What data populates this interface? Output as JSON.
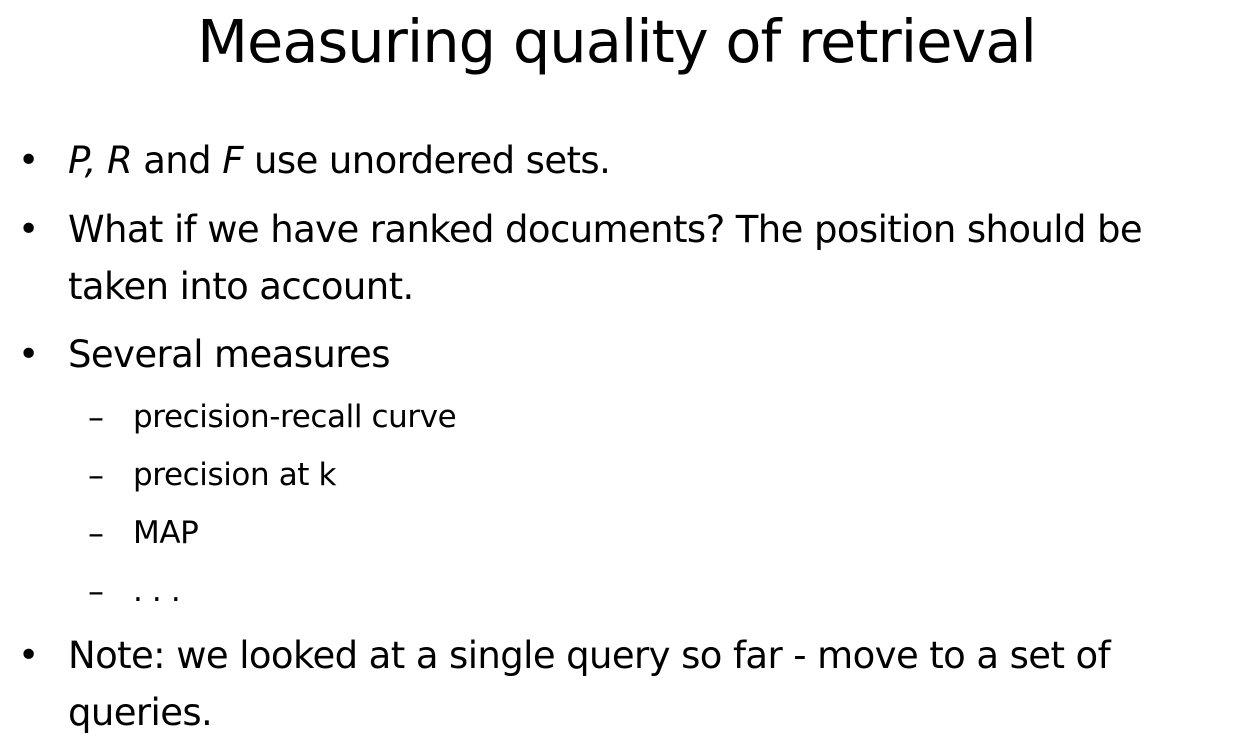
{
  "slide": {
    "title": "Measuring quality of retrieval",
    "bullets": [
      {
        "marker": "•",
        "prefix_italic_1": "P,",
        "sep_1": " ",
        "prefix_italic_2": "R",
        "middle": " and ",
        "prefix_italic_3": "F",
        "rest": " use unordered sets."
      },
      {
        "marker": "•",
        "line1": "What if we have ranked documents? The position should be",
        "line2": "taken into account."
      },
      {
        "marker": "•",
        "text": "Several measures",
        "subitems": [
          {
            "marker": "–",
            "text": "precision-recall curve"
          },
          {
            "marker": "–",
            "text": "precision at k"
          },
          {
            "marker": "–",
            "text": "MAP"
          },
          {
            "marker": "–",
            "text": ". . ."
          }
        ]
      },
      {
        "marker": "•",
        "line1": "Note: we looked at a single query so far - move to a set of",
        "line2": "queries."
      }
    ]
  }
}
